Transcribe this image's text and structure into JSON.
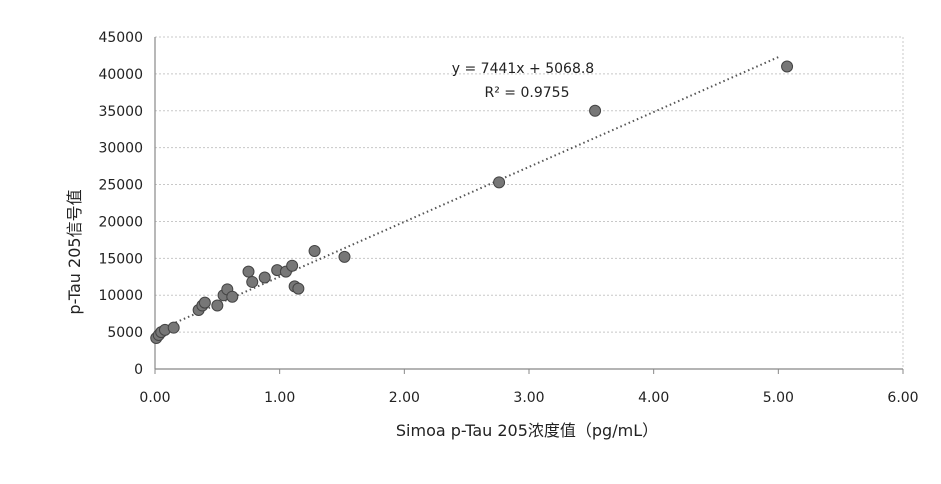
{
  "chart_data": {
    "type": "scatter",
    "xlabel": "Simoa p-Tau 205浓度值（pg/mL）",
    "ylabel": "p-Tau 205信号值",
    "xlim": [
      0,
      6
    ],
    "ylim": [
      0,
      45000
    ],
    "x_ticks": [
      "0.00",
      "1.00",
      "2.00",
      "3.00",
      "4.00",
      "5.00",
      "6.00"
    ],
    "y_ticks": [
      "0",
      "5000",
      "10000",
      "15000",
      "20000",
      "25000",
      "30000",
      "35000",
      "40000",
      "45000"
    ],
    "grid": true,
    "legend": "none",
    "marker_color": "#777777",
    "trendline_color": "#555555",
    "series": [
      {
        "points": [
          [
            0.01,
            4200
          ],
          [
            0.03,
            4600
          ],
          [
            0.05,
            5000
          ],
          [
            0.08,
            5300
          ],
          [
            0.15,
            5600
          ],
          [
            0.35,
            8000
          ],
          [
            0.38,
            8600
          ],
          [
            0.4,
            9000
          ],
          [
            0.5,
            8600
          ],
          [
            0.55,
            10000
          ],
          [
            0.58,
            10800
          ],
          [
            0.62,
            9800
          ],
          [
            0.75,
            13200
          ],
          [
            0.78,
            11800
          ],
          [
            0.88,
            12400
          ],
          [
            0.98,
            13400
          ],
          [
            1.05,
            13200
          ],
          [
            1.1,
            14000
          ],
          [
            1.12,
            11200
          ],
          [
            1.15,
            10900
          ],
          [
            1.28,
            16000
          ],
          [
            1.52,
            15200
          ],
          [
            2.76,
            25300
          ],
          [
            3.53,
            35000
          ],
          [
            5.07,
            41000
          ]
        ]
      }
    ],
    "trendline": {
      "slope": 7441,
      "intercept": 5068.8,
      "x_range": [
        0,
        5.0
      ]
    },
    "annotations": {
      "equation": "y = 7441x + 5068.8",
      "r_squared": "R² = 0.9755"
    }
  }
}
